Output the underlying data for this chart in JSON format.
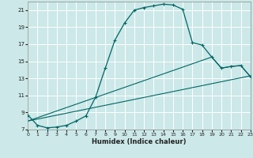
{
  "xlabel": "Humidex (Indice chaleur)",
  "bg_color": "#cce8e8",
  "grid_color": "#ffffff",
  "line_color": "#006666",
  "xlim": [
    0,
    23
  ],
  "ylim": [
    7,
    22
  ],
  "xticks": [
    0,
    1,
    2,
    3,
    4,
    5,
    6,
    7,
    8,
    9,
    10,
    11,
    12,
    13,
    14,
    15,
    16,
    17,
    18,
    19,
    20,
    21,
    22,
    23
  ],
  "yticks": [
    7,
    9,
    11,
    13,
    15,
    17,
    19,
    21
  ],
  "curve1_x": [
    0,
    1,
    2,
    3,
    4,
    5,
    6,
    7,
    8,
    9,
    10,
    11,
    12,
    13,
    14,
    15,
    16,
    17,
    18,
    19,
    20,
    21,
    22,
    23
  ],
  "curve1_y": [
    8.7,
    7.5,
    7.2,
    7.3,
    7.5,
    8.0,
    8.6,
    10.8,
    14.2,
    17.5,
    19.5,
    21.0,
    21.3,
    21.5,
    21.7,
    21.6,
    21.1,
    17.2,
    16.9,
    15.5,
    14.2,
    14.4,
    14.5,
    13.2
  ],
  "curve3_x": [
    0,
    23
  ],
  "curve3_y": [
    8.0,
    13.3
  ],
  "curve4_x": [
    0,
    19,
    20,
    21,
    22,
    23
  ],
  "curve4_y": [
    8.0,
    15.5,
    14.2,
    14.4,
    14.5,
    13.2
  ]
}
